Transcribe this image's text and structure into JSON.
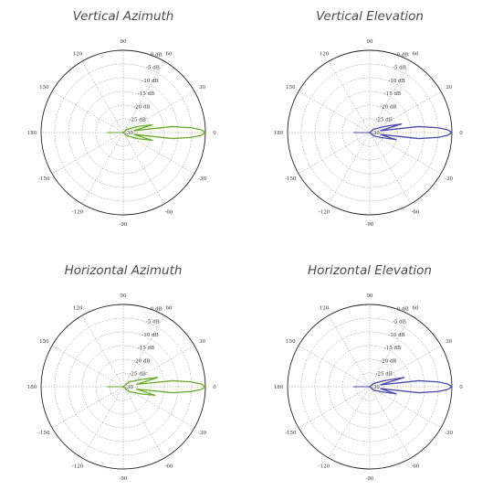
{
  "chart_data": [
    {
      "type": "polar",
      "title": "Vertical Azimuth",
      "color": "#6aaa2a",
      "angle_ticks": [
        "0",
        "30",
        "60",
        "90",
        "120",
        "150",
        "180",
        "-150",
        "-120",
        "-90",
        "-60",
        "-30"
      ],
      "radial_ticks": [
        "0 dB",
        "-5 dB",
        "-10 dB",
        "-15 dB",
        "-20 dB",
        "-25 dB",
        "-30"
      ],
      "rlim": [
        -30,
        0
      ],
      "grid": true,
      "series": [
        {
          "angles_deg": [
            -180,
            -150,
            -120,
            -90,
            -60,
            -40,
            -30,
            -22,
            -15,
            -10,
            -7,
            -4,
            -2,
            0,
            2,
            4,
            7,
            10,
            15,
            22,
            30,
            40,
            60,
            90,
            120,
            150,
            180
          ],
          "values_db": [
            -30,
            -30,
            -30,
            -30,
            -30,
            -28,
            -27,
            -24,
            -19,
            -26,
            -12,
            -5,
            -1.5,
            0,
            -1.5,
            -5,
            -12,
            -26,
            -19,
            -24,
            -27,
            -28,
            -30,
            -30,
            -30,
            -30,
            -30
          ]
        }
      ]
    },
    {
      "type": "polar",
      "title": "Vertical Elevation",
      "color": "#4a4aa8",
      "angle_ticks": [
        "0",
        "30",
        "60",
        "90",
        "120",
        "150",
        "180",
        "-150",
        "-120",
        "-90",
        "-60",
        "-30"
      ],
      "radial_ticks": [
        "0 dB",
        "-5 dB",
        "-10 dB",
        "-15 dB",
        "-20 dB",
        "-25 dB",
        "-30"
      ],
      "rlim": [
        -30,
        0
      ],
      "grid": true,
      "series": [
        {
          "angles_deg": [
            -180,
            -150,
            -120,
            -90,
            -60,
            -40,
            -30,
            -22,
            -15,
            -10,
            -7,
            -4,
            -2,
            0,
            2,
            4,
            7,
            10,
            15,
            22,
            30,
            40,
            60,
            90,
            120,
            150,
            180
          ],
          "values_db": [
            -30,
            -30,
            -30,
            -30,
            -30,
            -28,
            -27,
            -25,
            -20,
            -26,
            -12,
            -5,
            -1.5,
            0,
            -1.5,
            -5,
            -12,
            -26,
            -18,
            -24,
            -27,
            -28,
            -30,
            -30,
            -30,
            -30,
            -30
          ]
        }
      ]
    },
    {
      "type": "polar",
      "title": "Horizontal Azimuth",
      "color": "#6aaa2a",
      "angle_ticks": [
        "0",
        "30",
        "60",
        "90",
        "120",
        "150",
        "180",
        "-150",
        "-120",
        "-90",
        "-60",
        "-30"
      ],
      "radial_ticks": [
        "0 dB",
        "-5 dB",
        "-10 dB",
        "-15 dB",
        "-20 dB",
        "-25 dB",
        "-30"
      ],
      "rlim": [
        -30,
        0
      ],
      "grid": true,
      "series": [
        {
          "angles_deg": [
            -180,
            -150,
            -120,
            -90,
            -60,
            -40,
            -30,
            -22,
            -15,
            -10,
            -7,
            -4,
            -2,
            0,
            2,
            4,
            7,
            10,
            15,
            22,
            30,
            40,
            60,
            90,
            120,
            150,
            180
          ],
          "values_db": [
            -30,
            -30,
            -30,
            -30,
            -30,
            -27,
            -26,
            -23,
            -18,
            -25,
            -12,
            -5,
            -1.5,
            0,
            -1.5,
            -5,
            -12,
            -25,
            -17,
            -23,
            -26,
            -27,
            -30,
            -30,
            -30,
            -30,
            -30
          ]
        }
      ]
    },
    {
      "type": "polar",
      "title": "Horizontal Elevation",
      "color": "#4a4aa8",
      "angle_ticks": [
        "0",
        "30",
        "60",
        "90",
        "120",
        "150",
        "180",
        "-150",
        "-120",
        "-90",
        "-60",
        "-30"
      ],
      "radial_ticks": [
        "0 dB",
        "-5 dB",
        "-10 dB",
        "-15 dB",
        "-20 dB",
        "-25 dB",
        "-30"
      ],
      "rlim": [
        -30,
        0
      ],
      "grid": true,
      "series": [
        {
          "angles_deg": [
            -180,
            -150,
            -120,
            -90,
            -60,
            -40,
            -30,
            -22,
            -15,
            -10,
            -7,
            -4,
            -2,
            0,
            2,
            4,
            7,
            10,
            15,
            22,
            30,
            40,
            60,
            90,
            120,
            150,
            180
          ],
          "values_db": [
            -30,
            -30,
            -30,
            -30,
            -30,
            -28,
            -27,
            -25,
            -20,
            -26,
            -12,
            -5,
            -1.5,
            0,
            -1.5,
            -5,
            -12,
            -26,
            -17,
            -24,
            -27,
            -28,
            -30,
            -30,
            -30,
            -30,
            -30
          ]
        }
      ]
    }
  ]
}
